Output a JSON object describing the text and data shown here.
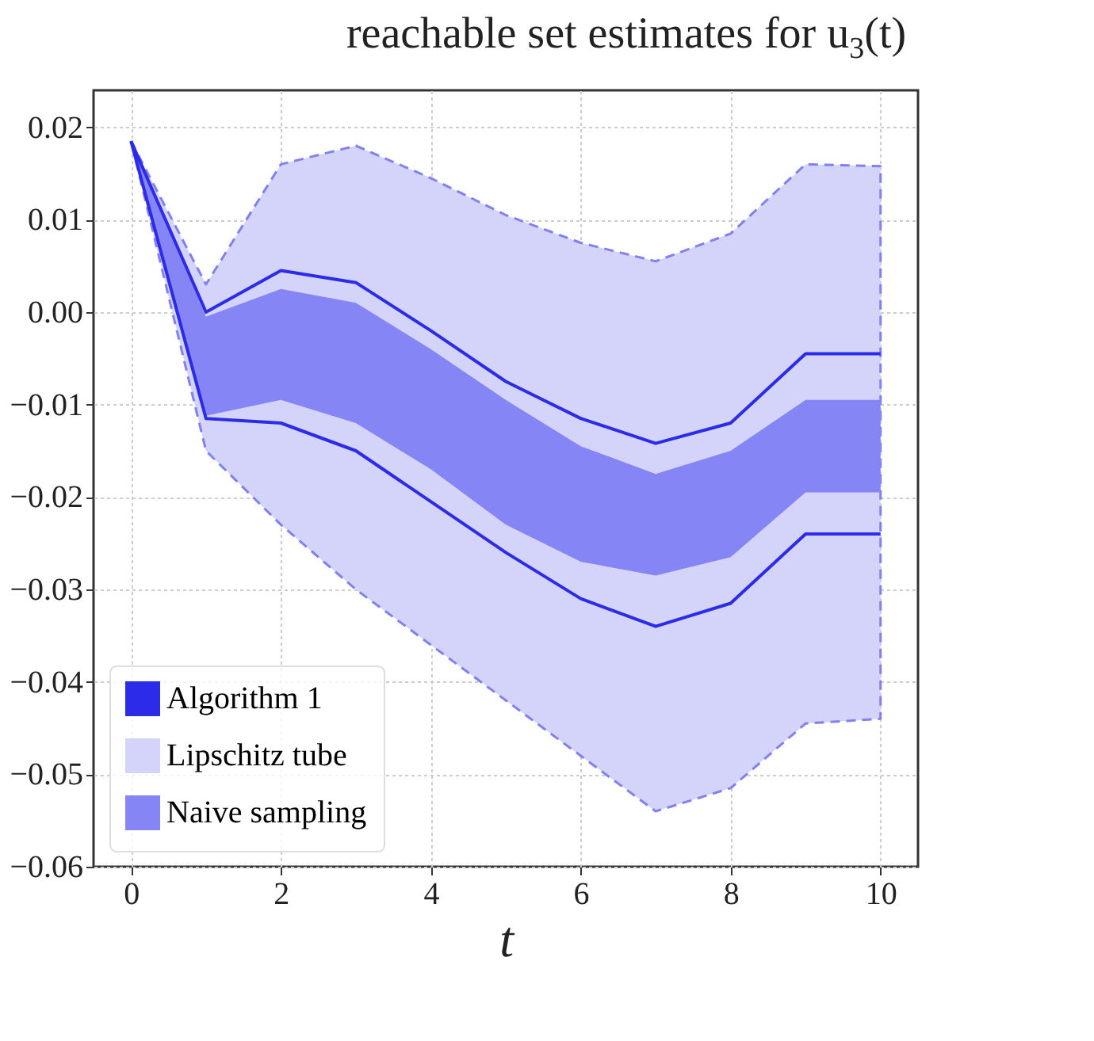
{
  "chart_data": {
    "type": "area",
    "title": "reachable set estimates for u$_{3}$(t)",
    "xlabel": "t",
    "x": [
      0,
      1,
      2,
      3,
      4,
      5,
      6,
      7,
      8,
      9,
      10
    ],
    "series": [
      {
        "name": "Algorithm 1",
        "type": "line",
        "color": "#2b2be8",
        "line_style": "solid",
        "values": [
          0.0185,
          0.0,
          0.0045,
          0.0032,
          -0.002,
          -0.0075,
          -0.0115,
          -0.0142,
          -0.012,
          -0.0045,
          -0.0045
        ]
      },
      {
        "type": "line",
        "color": "#2b2be8",
        "line_style": "solid",
        "values": [
          0.0185,
          -0.0115,
          -0.012,
          -0.015,
          -0.0205,
          -0.026,
          -0.031,
          -0.034,
          -0.0315,
          -0.024,
          -0.024
        ]
      },
      {
        "name": "Lipschitz tube",
        "color": "#d4d4fa",
        "line_style": "dashed",
        "values": [
          null,
          null,
          null,
          null,
          null,
          null,
          null,
          null,
          null,
          null,
          null
        ],
        "upper": [
          0.0185,
          0.003,
          0.016,
          0.018,
          0.0145,
          0.0105,
          0.0075,
          0.0055,
          0.0085,
          0.016,
          0.0158
        ],
        "lower": [
          0.0185,
          -0.015,
          -0.023,
          -0.03,
          -0.036,
          -0.042,
          -0.048,
          -0.054,
          -0.0515,
          -0.0445,
          -0.044
        ]
      },
      {
        "name": "Naive sampling",
        "color": "#8585f5",
        "values": [
          null,
          null,
          null,
          null,
          null,
          null,
          null,
          null,
          null,
          null,
          null
        ],
        "upper": [
          0.0185,
          -0.0005,
          0.0025,
          0.001,
          -0.004,
          -0.0095,
          -0.0145,
          -0.0175,
          -0.015,
          -0.0095,
          -0.0095
        ],
        "lower": [
          0.0185,
          -0.0112,
          -0.0095,
          -0.012,
          -0.017,
          -0.023,
          -0.027,
          -0.0285,
          -0.0265,
          -0.0195,
          -0.0195
        ]
      }
    ],
    "xlim": [
      -0.5,
      10.5
    ],
    "xticks": [
      0,
      2,
      4,
      6,
      8,
      10
    ],
    "ylim": [
      -0.06,
      0.024
    ],
    "yticks": [
      {
        "value": -0.06,
        "label": "−0.06"
      },
      {
        "value": -0.05,
        "label": "−0.05"
      },
      {
        "value": -0.04,
        "label": "−0.04"
      },
      {
        "value": -0.03,
        "label": "−0.03"
      },
      {
        "value": -0.02,
        "label": "−0.02"
      },
      {
        "value": -0.01,
        "label": "−0.01"
      },
      {
        "value": 0,
        "label": "0.00"
      },
      {
        "value": 0.01,
        "label": "0.01"
      },
      {
        "value": 0.02,
        "label": "0.02"
      }
    ],
    "grid": true,
    "legend": "bottom left"
  }
}
